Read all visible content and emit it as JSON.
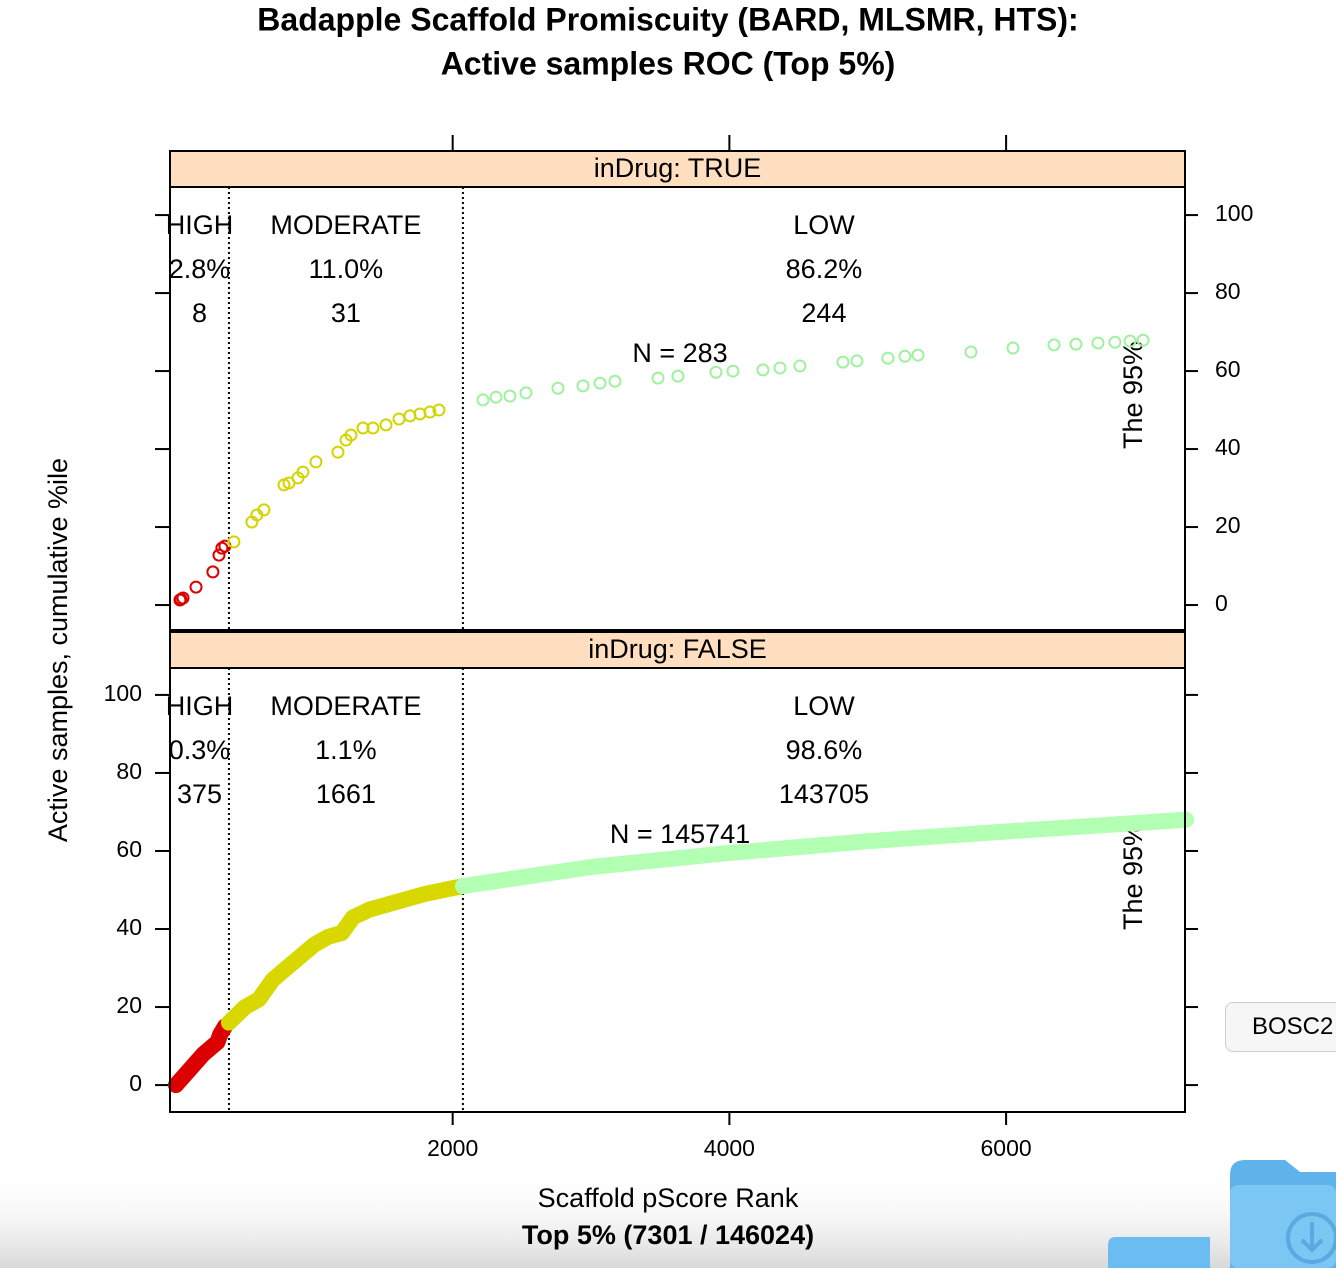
{
  "title": [
    "Badapple Scaffold Promiscuity (BARD, MLSMR, HTS):",
    "Active samples ROC (Top 5%)"
  ],
  "x_label": "Scaffold pScore Rank",
  "x_sublabel": "Top 5% (7301 / 146024)",
  "y_label": "Active samples, cumulative %ile",
  "button": "BOSC2",
  "chart_data": [
    {
      "type": "scatter",
      "strip": "inDrug: TRUE",
      "xlim": [
        -43,
        7293
      ],
      "xticks": [
        2000,
        4000,
        6000
      ],
      "x_axis_side": "top",
      "ylim": [
        -6.4,
        107.2
      ],
      "yticks": [
        0,
        20,
        40,
        60,
        80,
        100
      ],
      "y_axis_side": "right",
      "cutoffs": [
        383,
        2074
      ],
      "classes": [
        {
          "label": "HIGH",
          "percent": "2.8%",
          "count": 8
        },
        {
          "label": "MODERATE",
          "percent": "11.0%",
          "count": 31
        },
        {
          "label": "LOW",
          "percent": "86.2%",
          "count": 244
        }
      ],
      "n_label": "N = 283",
      "note": "The 95%",
      "series": [
        {
          "color": "#dd0000",
          "x": [
            29,
            36,
            51,
            145,
            267,
            311,
            332,
            354
          ],
          "y": [
            1.3,
            1.5,
            1.8,
            4.6,
            8.5,
            12.8,
            14.6,
            15.1
          ]
        },
        {
          "color": "#d4d400",
          "x": [
            419,
            549,
            585,
            636,
            781,
            817,
            882,
            918,
            1012,
            1171,
            1229,
            1265,
            1352,
            1424,
            1518,
            1612,
            1691,
            1764,
            1836,
            1901
          ],
          "y": [
            16.2,
            21.3,
            23.1,
            24.4,
            30.8,
            31.3,
            32.6,
            34.1,
            36.7,
            39.2,
            42.3,
            43.6,
            45.4,
            45.4,
            46.2,
            47.7,
            48.5,
            49,
            49.5,
            50
          ]
        },
        {
          "color": "#9ff09f",
          "x": [
            2219,
            2313,
            2414,
            2530,
            2761,
            2942,
            3065,
            3173,
            3484,
            3628,
            3903,
            4026,
            4243,
            4366,
            4510,
            4821,
            4922,
            5146,
            5269,
            5363,
            5746,
            6050,
            6346,
            6505,
            6664,
            6787,
            6896,
            6990
          ],
          "y": [
            52.6,
            53.3,
            53.6,
            54.4,
            55.6,
            56.2,
            56.9,
            57.4,
            58.2,
            58.7,
            59.7,
            60,
            60.3,
            60.8,
            61.3,
            62.3,
            62.6,
            63.3,
            63.8,
            64.1,
            64.9,
            65.9,
            66.7,
            66.9,
            67.2,
            67.4,
            67.7,
            67.9
          ]
        }
      ]
    },
    {
      "type": "line",
      "strip": "inDrug: FALSE",
      "xlim": [
        -43,
        7293
      ],
      "xticks": [
        2000,
        4000,
        6000
      ],
      "x_axis_side": "bottom",
      "ylim": [
        -6.9,
        106.9
      ],
      "yticks": [
        0,
        20,
        40,
        60,
        80,
        100
      ],
      "y_axis_side": "left",
      "cutoffs": [
        383,
        2074
      ],
      "classes": [
        {
          "label": "HIGH",
          "percent": "0.3%",
          "count": 375
        },
        {
          "label": "MODERATE",
          "percent": "1.1%",
          "count": 1661
        },
        {
          "label": "LOW",
          "percent": "98.6%",
          "count": 143705
        }
      ],
      "n_label": "N = 145741",
      "note": "The 95%",
      "series": [
        {
          "color": "#dd0000",
          "x": [
            0,
            100,
            200,
            300,
            320,
            354
          ],
          "y": [
            0,
            4,
            8,
            11,
            13,
            15
          ]
        },
        {
          "color": "#d8d800",
          "x": [
            383,
            500,
            600,
            700,
            800,
            900,
            1000,
            1100,
            1200,
            1280,
            1400,
            1600,
            1800,
            2074
          ],
          "y": [
            16,
            20,
            22,
            27,
            30,
            33,
            36,
            38,
            39,
            43,
            45,
            47,
            49,
            51
          ]
        },
        {
          "color": "#b3ffb3",
          "x": [
            2074,
            3000,
            4000,
            5000,
            6000,
            7301
          ],
          "y": [
            51,
            55.9,
            59.5,
            62.5,
            65,
            68
          ]
        }
      ]
    }
  ]
}
